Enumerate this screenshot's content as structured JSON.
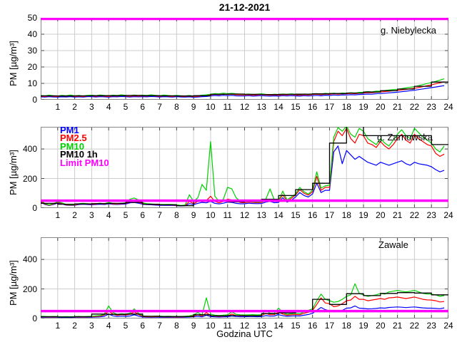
{
  "title": "21-12-2021",
  "xlabel": "Godzina UTC",
  "legend": {
    "position": "top-left-of-middle-panel",
    "items": [
      {
        "label": "PM1",
        "color": "#0000ff"
      },
      {
        "label": "PM2.5",
        "color": "#ff0000"
      },
      {
        "label": "PM10",
        "color": "#00d000"
      },
      {
        "label": "PM10 1h",
        "color": "#000000"
      },
      {
        "label": "Limit PM10",
        "color": "#ff00ff"
      }
    ]
  },
  "colors": {
    "grid": "#cccccc",
    "frame": "#888888",
    "tick": "#444444",
    "background": "#ffffff"
  },
  "chart_data": [
    {
      "type": "line",
      "station": "g. Niebylecka",
      "ylabel": "PM [µg/m³]",
      "ylim": [
        0,
        50
      ],
      "yticks": [
        0,
        10,
        20,
        30,
        40,
        50
      ],
      "xticks": [
        1,
        2,
        3,
        4,
        5,
        6,
        7,
        8,
        9,
        10,
        11,
        12,
        13,
        14,
        15,
        16,
        17,
        18,
        19,
        20,
        21,
        22,
        23,
        24
      ],
      "x_start": 0,
      "x_step": 0.25,
      "limit": {
        "name": "Limit PM10",
        "value": 50,
        "color": "#ff00ff"
      },
      "step_series": {
        "name": "PM10 1h",
        "color": "#000000",
        "hourly_values": [
          2.4,
          2.3,
          2.4,
          2.5,
          2.5,
          2.6,
          2.5,
          2.4,
          2.3,
          2.5,
          3.3,
          3.5,
          3.3,
          3.2,
          3.3,
          3.4,
          3.6,
          3.8,
          4.1,
          4.7,
          5.5,
          6.5,
          8.2,
          10.8
        ]
      },
      "series": [
        {
          "name": "PM1",
          "color": "#0000ff",
          "values": [
            1.8,
            1.6,
            1.9,
            1.7,
            1.6,
            1.8,
            1.7,
            1.9,
            1.6,
            1.8,
            1.6,
            1.9,
            1.9,
            1.7,
            1.9,
            1.8,
            1.6,
            1.9,
            1.8,
            2.0,
            1.9,
            1.7,
            1.9,
            1.8,
            1.9,
            1.8,
            2.0,
            1.9,
            1.7,
            1.9,
            1.8,
            1.6,
            1.9,
            1.7,
            1.6,
            1.8,
            1.5,
            1.7,
            1.9,
            2.0,
            2.3,
            2.6,
            2.4,
            2.7,
            2.5,
            2.7,
            2.4,
            2.3,
            2.3,
            2.5,
            2.2,
            2.4,
            2.5,
            2.3,
            2.2,
            2.4,
            2.2,
            2.5,
            2.3,
            2.5,
            2.4,
            2.2,
            2.5,
            2.3,
            2.5,
            2.7,
            2.4,
            2.8,
            2.6,
            2.9,
            2.7,
            3.0,
            2.9,
            3.1,
            3.0,
            3.2,
            3.3,
            3.5,
            3.4,
            3.7,
            3.8,
            4.0,
            4.2,
            4.4,
            4.6,
            4.9,
            5.2,
            5.5,
            5.8,
            6.2,
            6.6,
            7.0,
            7.4,
            7.8,
            8.2,
            8.6
          ]
        },
        {
          "name": "PM2.5",
          "color": "#ff0000",
          "values": [
            2.2,
            2.0,
            2.4,
            2.1,
            2.0,
            2.3,
            2.1,
            2.4,
            2.0,
            2.2,
            2.0,
            2.3,
            2.4,
            2.1,
            2.4,
            2.2,
            2.0,
            2.4,
            2.2,
            2.5,
            2.3,
            2.1,
            2.4,
            2.2,
            2.4,
            2.2,
            2.5,
            2.3,
            2.1,
            2.4,
            2.2,
            2.0,
            2.3,
            2.1,
            2.0,
            2.2,
            1.9,
            2.1,
            2.4,
            2.5,
            3.0,
            3.3,
            3.1,
            3.5,
            3.2,
            3.4,
            3.1,
            3.0,
            2.9,
            3.1,
            2.8,
            3.0,
            3.2,
            2.9,
            2.8,
            3.0,
            2.8,
            3.1,
            2.9,
            3.2,
            3.0,
            2.8,
            3.1,
            2.9,
            3.2,
            3.4,
            3.1,
            3.5,
            3.3,
            3.6,
            3.4,
            3.7,
            3.6,
            3.9,
            3.7,
            4.0,
            4.1,
            4.4,
            4.3,
            4.6,
            4.7,
            5.0,
            5.2,
            5.5,
            5.7,
            6.0,
            6.3,
            6.7,
            7.0,
            7.5,
            8.0,
            8.6,
            9.1,
            9.7,
            10.3,
            11.0
          ]
        },
        {
          "name": "PM10",
          "color": "#00d000",
          "values": [
            2.6,
            2.4,
            2.8,
            2.5,
            2.3,
            2.7,
            2.5,
            2.9,
            2.4,
            2.6,
            2.3,
            2.7,
            2.8,
            2.5,
            2.9,
            2.6,
            2.4,
            2.8,
            2.6,
            3.0,
            2.7,
            2.5,
            2.9,
            2.6,
            2.8,
            2.6,
            3.0,
            2.7,
            2.5,
            2.9,
            2.6,
            2.4,
            2.7,
            2.5,
            2.3,
            2.6,
            2.2,
            2.5,
            2.8,
            3.0,
            3.4,
            3.8,
            3.6,
            4.0,
            3.7,
            3.9,
            3.6,
            3.4,
            3.3,
            3.5,
            3.2,
            3.4,
            3.6,
            3.3,
            3.1,
            3.4,
            3.2,
            3.5,
            3.3,
            3.6,
            3.4,
            3.2,
            3.5,
            3.3,
            3.6,
            3.8,
            3.5,
            3.9,
            3.7,
            4.0,
            3.8,
            4.1,
            4.0,
            4.3,
            4.1,
            4.5,
            4.6,
            5.0,
            4.8,
            5.2,
            5.3,
            5.6,
            5.9,
            6.2,
            6.4,
            6.8,
            7.2,
            7.6,
            8.0,
            8.6,
            9.2,
            9.9,
            10.5,
            11.2,
            12.0,
            12.8
          ]
        }
      ]
    },
    {
      "type": "line",
      "station": "g. Zarnowska",
      "ylabel": "PM [µg/m³]",
      "ylim": [
        0,
        550
      ],
      "yticks": [
        0,
        200,
        400
      ],
      "xticks": [
        1,
        2,
        3,
        4,
        5,
        6,
        7,
        8,
        9,
        10,
        11,
        12,
        13,
        14,
        15,
        16,
        17,
        18,
        19,
        20,
        21,
        22,
        23,
        24
      ],
      "x_start": 0,
      "x_step": 0.25,
      "limit": {
        "name": "Limit PM10",
        "value": 50,
        "color": "#ff00ff"
      },
      "step_series": {
        "name": "PM10 1h",
        "color": "#000000",
        "hourly_values": [
          32,
          26,
          28,
          30,
          32,
          38,
          26,
          22,
          16,
          45,
          48,
          42,
          46,
          60,
          85,
          125,
          168,
          440,
          556,
          490,
          490,
          490,
          490,
          430
        ]
      },
      "series": [
        {
          "name": "PM1",
          "color": "#0000ff",
          "values": [
            40,
            24,
            18,
            24,
            34,
            28,
            20,
            18,
            19,
            24,
            26,
            24,
            22,
            24,
            26,
            24,
            29,
            25,
            24,
            26,
            27,
            35,
            38,
            33,
            26,
            23,
            22,
            20,
            19,
            18,
            19,
            18,
            16,
            14,
            15,
            30,
            24,
            32,
            38,
            35,
            45,
            32,
            28,
            33,
            40,
            38,
            32,
            29,
            29,
            33,
            31,
            30,
            31,
            40,
            45,
            36,
            38,
            70,
            40,
            52,
            75,
            105,
            85,
            75,
            95,
            170,
            105,
            120,
            120,
            380,
            420,
            300,
            390,
            360,
            330,
            350,
            330,
            310,
            300,
            290,
            310,
            300,
            290,
            300,
            310,
            320,
            300,
            290,
            310,
            300,
            295,
            290,
            280,
            260,
            245,
            255
          ]
        },
        {
          "name": "PM2.5",
          "color": "#ff0000",
          "values": [
            45,
            27,
            20,
            27,
            38,
            32,
            22,
            20,
            21,
            27,
            29,
            27,
            25,
            27,
            30,
            27,
            33,
            28,
            27,
            30,
            31,
            45,
            50,
            42,
            30,
            26,
            25,
            23,
            22,
            21,
            22,
            21,
            19,
            16,
            17,
            45,
            30,
            45,
            55,
            50,
            80,
            45,
            35,
            45,
            60,
            55,
            45,
            38,
            36,
            40,
            38,
            36,
            38,
            50,
            60,
            45,
            45,
            90,
            48,
            65,
            88,
            125,
            100,
            88,
            110,
            215,
            120,
            140,
            140,
            450,
            520,
            490,
            540,
            470,
            440,
            500,
            490,
            440,
            430,
            410,
            450,
            420,
            400,
            430,
            470,
            500,
            460,
            440,
            500,
            470,
            450,
            430,
            420,
            370,
            350,
            365
          ]
        },
        {
          "name": "PM10",
          "color": "#00d000",
          "values": [
            55,
            30,
            22,
            30,
            42,
            35,
            25,
            22,
            24,
            30,
            32,
            30,
            28,
            30,
            33,
            30,
            38,
            32,
            30,
            33,
            35,
            60,
            68,
            55,
            35,
            30,
            28,
            26,
            25,
            24,
            25,
            24,
            22,
            18,
            20,
            90,
            45,
            70,
            160,
            120,
            450,
            80,
            45,
            60,
            140,
            130,
            70,
            45,
            40,
            45,
            42,
            40,
            42,
            60,
            130,
            55,
            50,
            115,
            55,
            75,
            95,
            140,
            110,
            95,
            120,
            245,
            135,
            150,
            155,
            480,
            545,
            520,
            555,
            500,
            480,
            540,
            520,
            470,
            450,
            430,
            470,
            440,
            420,
            460,
            500,
            530,
            490,
            470,
            540,
            510,
            480,
            460,
            440,
            400,
            380,
            420
          ]
        }
      ]
    },
    {
      "type": "line",
      "station": "Zawale",
      "ylabel": "PM [µg/m³]",
      "ylim": [
        0,
        550
      ],
      "yticks": [
        0,
        200,
        400
      ],
      "xticks": [
        1,
        2,
        3,
        4,
        5,
        6,
        7,
        8,
        9,
        10,
        11,
        12,
        13,
        14,
        15,
        16,
        17,
        18,
        19,
        20,
        21,
        22,
        23,
        24
      ],
      "x_start": 0,
      "x_step": 0.25,
      "limit": {
        "name": "Limit PM10",
        "value": 50,
        "color": "#ff00ff"
      },
      "step_series": {
        "name": "PM10 1h",
        "color": "#000000",
        "hourly_values": [
          12,
          10,
          12,
          30,
          28,
          30,
          15,
          13,
          13,
          25,
          18,
          20,
          18,
          33,
          38,
          45,
          130,
          95,
          168,
          155,
          170,
          175,
          172,
          160
        ]
      },
      "series": [
        {
          "name": "PM1",
          "color": "#0000ff",
          "values": [
            9,
            8,
            8,
            8,
            8,
            7,
            8,
            7,
            8,
            8,
            8,
            8,
            9,
            10,
            11,
            15,
            30,
            18,
            14,
            16,
            15,
            17,
            25,
            17,
            10,
            9,
            8,
            9,
            9,
            8,
            9,
            8,
            8,
            8,
            9,
            10,
            12,
            15,
            11,
            22,
            13,
            11,
            10,
            11,
            12,
            17,
            13,
            12,
            12,
            13,
            13,
            12,
            13,
            20,
            16,
            17,
            26,
            19,
            15,
            17,
            18,
            17,
            22,
            27,
            35,
            55,
            75,
            60,
            52,
            45,
            48,
            55,
            70,
            72,
            85,
            70,
            68,
            65,
            66,
            68,
            72,
            70,
            75,
            76,
            78,
            76,
            74,
            76,
            78,
            75,
            72,
            70,
            70,
            68,
            66,
            72
          ]
        },
        {
          "name": "PM2.5",
          "color": "#ff0000",
          "values": [
            12,
            11,
            10,
            11,
            10,
            10,
            10,
            10,
            10,
            11,
            10,
            11,
            12,
            14,
            16,
            24,
            50,
            30,
            22,
            26,
            24,
            28,
            45,
            28,
            14,
            12,
            11,
            12,
            13,
            11,
            12,
            11,
            10,
            11,
            12,
            14,
            18,
            25,
            16,
            40,
            20,
            16,
            15,
            16,
            18,
            30,
            20,
            18,
            18,
            19,
            20,
            18,
            20,
            35,
            25,
            26,
            45,
            30,
            22,
            25,
            27,
            25,
            35,
            42,
            55,
            95,
            140,
            105,
            100,
            80,
            85,
            100,
            120,
            125,
            150,
            130,
            130,
            120,
            125,
            130,
            135,
            130,
            140,
            142,
            145,
            140,
            135,
            140,
            145,
            138,
            130,
            126,
            125,
            120,
            112,
            115
          ]
        },
        {
          "name": "PM10",
          "color": "#00d000",
          "values": [
            15,
            14,
            13,
            14,
            13,
            12,
            13,
            12,
            13,
            14,
            13,
            14,
            15,
            18,
            20,
            30,
            85,
            40,
            28,
            32,
            30,
            35,
            65,
            35,
            18,
            15,
            14,
            15,
            16,
            14,
            15,
            14,
            13,
            14,
            15,
            18,
            25,
            40,
            22,
            140,
            30,
            22,
            20,
            22,
            25,
            45,
            28,
            25,
            24,
            25,
            26,
            24,
            26,
            55,
            35,
            35,
            70,
            40,
            28,
            32,
            35,
            32,
            45,
            55,
            65,
            120,
            165,
            130,
            120,
            110,
            115,
            130,
            150,
            160,
            235,
            170,
            160,
            150,
            155,
            160,
            170,
            165,
            180,
            185,
            190,
            185,
            180,
            185,
            190,
            180,
            170,
            165,
            165,
            160,
            150,
            155
          ]
        }
      ]
    }
  ]
}
